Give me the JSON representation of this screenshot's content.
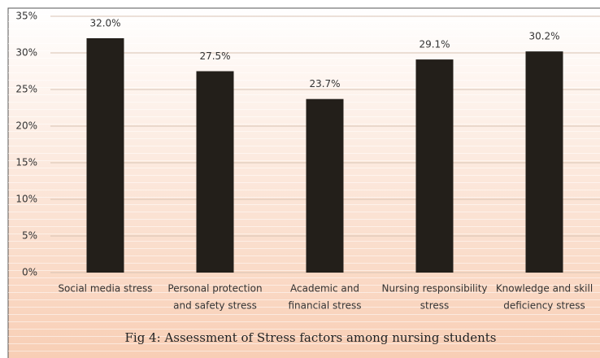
{
  "chart_data": {
    "type": "bar",
    "title": "Fig 4: Assessment of Stress factors among nursing students",
    "categories": [
      [
        "Social media stress"
      ],
      [
        "Personal protection",
        "and safety stress"
      ],
      [
        "Academic and",
        "financial stress"
      ],
      [
        "Nursing responsibility",
        "stress"
      ],
      [
        "Knowledge and skill",
        "deficiency stress"
      ]
    ],
    "values": [
      32.0,
      27.5,
      23.7,
      29.1,
      30.2
    ],
    "value_labels": [
      "32.0%",
      "27.5%",
      "23.7%",
      "29.1%",
      "30.2%"
    ],
    "color": "#231f1a",
    "ylim": [
      0,
      35
    ],
    "yticks": [
      {
        "value": 0,
        "label": "0%"
      },
      {
        "value": 5,
        "label": "5%"
      },
      {
        "value": 10,
        "label": "10%"
      },
      {
        "value": 15,
        "label": "15%"
      },
      {
        "value": 20,
        "label": "20%"
      },
      {
        "value": 25,
        "label": "25%"
      },
      {
        "value": 30,
        "label": "30%"
      },
      {
        "value": 35,
        "label": "35%"
      }
    ],
    "grid": true
  }
}
